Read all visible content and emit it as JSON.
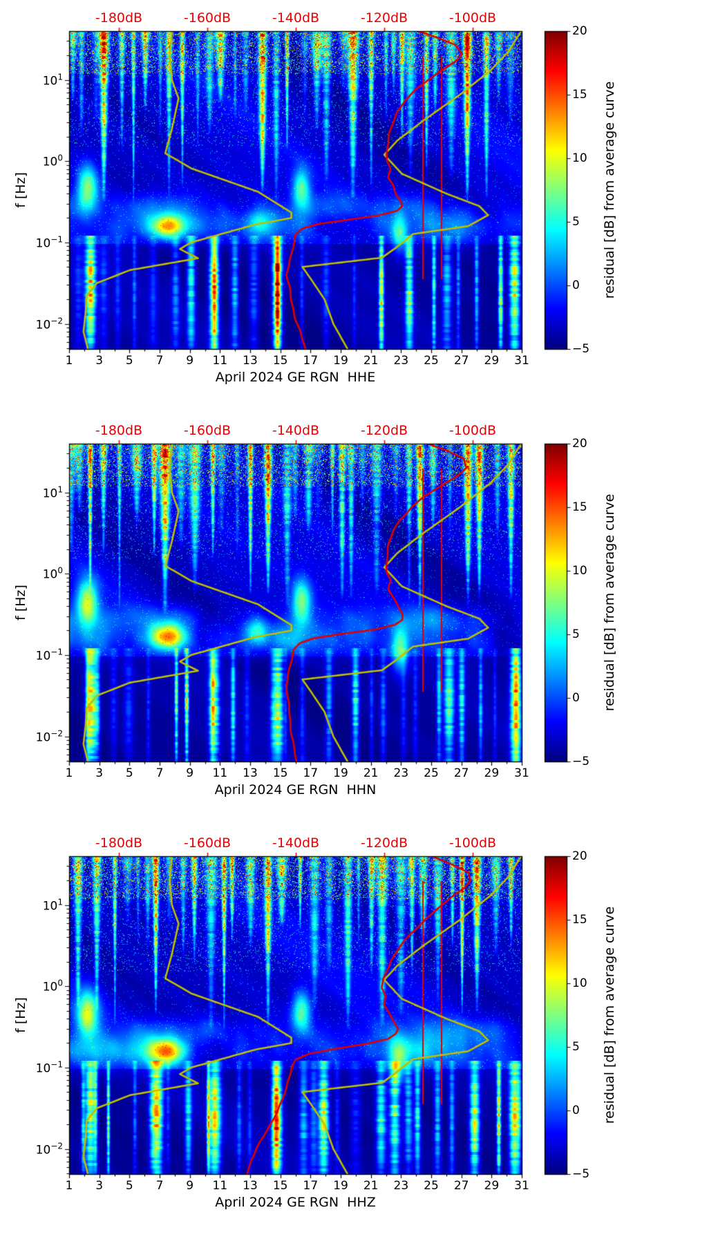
{
  "chart_data": {
    "type": "heatmap",
    "description": "Three stacked day-vs-frequency spectrograms (residual PSD in dB from average curve, jet colormap) for station GE RGN, April 2024, components HHE, HHN, HHZ. Vertical daily noise stripes, speckled high-frequency band above ~12 Hz, bright microseism band near 0.1-0.3 Hz with strong blob around day 7-8, sparse long-period streaks below 0.1 Hz. Overlaid: red average PSD curve and dark-yellow Peterson NLNM/NHNM reference curves plotted against the top dB axis.",
    "station": "GE RGN",
    "month": "April 2024",
    "axes": {
      "x_ticks": [
        1,
        3,
        5,
        7,
        9,
        11,
        13,
        15,
        17,
        19,
        21,
        23,
        25,
        27,
        29,
        31
      ],
      "x_range": [
        1,
        31
      ],
      "y_label": "f [Hz]",
      "y_tick_exponents": [
        1,
        0,
        -1,
        -2
      ],
      "log_f_range": [
        -2.31,
        1.6
      ],
      "top_axis": {
        "unit": "dB",
        "ticks": [
          -180,
          -160,
          -140,
          -120,
          -100
        ],
        "labels": [
          "-180dB",
          "-160dB",
          "-140dB",
          "-120dB",
          "-100dB"
        ],
        "db_range": [
          -191.25,
          -88.9
        ]
      }
    },
    "colorbar": {
      "label": "residual [dB] from average curve",
      "ticks": [
        20,
        15,
        10,
        5,
        0,
        -5
      ],
      "tick_labels": [
        "20",
        "15",
        "10",
        "5",
        "0",
        "−5"
      ],
      "clim": [
        -5,
        20
      ],
      "colormap": "jet"
    },
    "colors": {
      "annotation_red": "#ea0000",
      "curve_red": "#dd0000",
      "curve_yellow": "#bfbf00",
      "background": "#ffffff"
    },
    "overlays": {
      "nlnm": [
        [
          -168,
          40
        ],
        [
          -168.5,
          20
        ],
        [
          -168,
          10
        ],
        [
          -166.5,
          5.9
        ],
        [
          -168,
          2.5
        ],
        [
          -169.5,
          1.25
        ],
        [
          -163.5,
          0.81
        ],
        [
          -148.5,
          0.42
        ],
        [
          -141,
          0.233
        ],
        [
          -141,
          0.2
        ],
        [
          -149,
          0.167
        ],
        [
          -163.7,
          0.1
        ],
        [
          -166.2,
          0.083
        ],
        [
          -162.1,
          0.064
        ],
        [
          -177.5,
          0.0457
        ],
        [
          -185,
          0.0316
        ],
        [
          -187.3,
          0.022
        ],
        [
          -187.5,
          0.014
        ],
        [
          -188,
          0.008
        ],
        [
          -187,
          0.0049
        ]
      ],
      "nhnm": [
        [
          -89,
          40
        ],
        [
          -92,
          22
        ],
        [
          -96,
          13
        ],
        [
          -103,
          6.5
        ],
        [
          -111,
          3.2
        ],
        [
          -117,
          1.8
        ],
        [
          -120,
          1.2
        ],
        [
          -116,
          0.7
        ],
        [
          -106,
          0.4
        ],
        [
          -98.5,
          0.28
        ],
        [
          -96.5,
          0.217
        ],
        [
          -101,
          0.159
        ],
        [
          -113.5,
          0.127
        ],
        [
          -117.5,
          0.085
        ],
        [
          -120.5,
          0.065
        ],
        [
          -138.5,
          0.05
        ],
        [
          -136.5,
          0.035
        ],
        [
          -133.5,
          0.02
        ],
        [
          -131.5,
          0.01
        ],
        [
          -128.3,
          0.0049
        ]
      ]
    },
    "panels": [
      {
        "component": "HHE",
        "xlabel": "April 2024 GE RGN  HHE",
        "seed": 17,
        "marker_line_days": [
          24.45,
          25.72
        ],
        "low_events": [
          [
            2.4,
            15
          ],
          [
            10.6,
            12
          ],
          [
            14.8,
            13
          ],
          [
            30.55,
            14
          ]
        ],
        "blobs": [
          [
            7.6,
            -0.8,
            13,
            0.75,
            0.1
          ],
          [
            2.2,
            -0.33,
            11,
            0.5,
            0.2
          ],
          [
            16.4,
            -0.33,
            9,
            0.4,
            0.17
          ],
          [
            13.6,
            -0.75,
            6,
            0.6,
            0.12
          ],
          [
            22.9,
            -0.9,
            7,
            0.35,
            0.18
          ]
        ],
        "red_curve": [
          [
            -112,
            40
          ],
          [
            -108,
            33
          ],
          [
            -104,
            27
          ],
          [
            -102.5,
            21
          ],
          [
            -104,
            17
          ],
          [
            -107,
            13
          ],
          [
            -110,
            10
          ],
          [
            -113,
            7.5
          ],
          [
            -115.5,
            5.5
          ],
          [
            -117,
            4
          ],
          [
            -118,
            2.8
          ],
          [
            -119,
            2
          ],
          [
            -119.5,
            1.4
          ],
          [
            -119.5,
            1.0
          ],
          [
            -118.5,
            0.8
          ],
          [
            -119,
            0.62
          ],
          [
            -118,
            0.5
          ],
          [
            -117.5,
            0.4
          ],
          [
            -116.5,
            0.33
          ],
          [
            -116,
            0.28
          ],
          [
            -117,
            0.245
          ],
          [
            -121,
            0.215
          ],
          [
            -128,
            0.19
          ],
          [
            -135,
            0.168
          ],
          [
            -138.5,
            0.148
          ],
          [
            -140,
            0.125
          ],
          [
            -140.5,
            0.1
          ],
          [
            -141,
            0.075
          ],
          [
            -141.5,
            0.055
          ],
          [
            -142,
            0.04
          ],
          [
            -141.5,
            0.028
          ],
          [
            -141,
            0.019
          ],
          [
            -140,
            0.012
          ],
          [
            -139,
            0.008
          ],
          [
            -138,
            0.0049
          ]
        ]
      },
      {
        "component": "HHN",
        "xlabel": "April 2024 GE RGN  HHN",
        "seed": 29,
        "marker_line_days": [
          24.45,
          25.72
        ],
        "low_events": [
          [
            2.45,
            14
          ],
          [
            10.6,
            12
          ],
          [
            14.85,
            13
          ],
          [
            26.2,
            10
          ],
          [
            30.6,
            14
          ]
        ],
        "blobs": [
          [
            7.5,
            -0.78,
            15,
            0.9,
            0.11
          ],
          [
            2.2,
            -0.35,
            12,
            0.5,
            0.2
          ],
          [
            16.4,
            -0.33,
            10,
            0.45,
            0.18
          ],
          [
            22.9,
            -0.95,
            8,
            0.4,
            0.2
          ],
          [
            13.4,
            -0.7,
            6,
            0.5,
            0.12
          ]
        ],
        "red_curve": [
          [
            -110,
            40
          ],
          [
            -106,
            33
          ],
          [
            -102,
            26
          ],
          [
            -101.5,
            20
          ],
          [
            -103.5,
            16
          ],
          [
            -107,
            12
          ],
          [
            -111,
            9
          ],
          [
            -114,
            6.5
          ],
          [
            -116.5,
            4.6
          ],
          [
            -118,
            3.2
          ],
          [
            -119,
            2.2
          ],
          [
            -119.5,
            1.5
          ],
          [
            -119.5,
            1.05
          ],
          [
            -118.5,
            0.82
          ],
          [
            -119,
            0.64
          ],
          [
            -118,
            0.5
          ],
          [
            -117,
            0.4
          ],
          [
            -116,
            0.32
          ],
          [
            -116,
            0.27
          ],
          [
            -117.5,
            0.235
          ],
          [
            -122,
            0.205
          ],
          [
            -130,
            0.18
          ],
          [
            -136,
            0.16
          ],
          [
            -139,
            0.14
          ],
          [
            -140.5,
            0.115
          ],
          [
            -141,
            0.09
          ],
          [
            -141.5,
            0.065
          ],
          [
            -142,
            0.045
          ],
          [
            -142,
            0.03
          ],
          [
            -141.5,
            0.02
          ],
          [
            -141,
            0.013
          ],
          [
            -140.5,
            0.008
          ],
          [
            -140,
            0.0049
          ]
        ]
      },
      {
        "component": "HHZ",
        "xlabel": "April 2024 GE RGN  HHZ",
        "seed": 43,
        "marker_line_days": [
          24.45,
          25.72
        ],
        "low_events": [
          [
            2.4,
            13
          ],
          [
            6.9,
            11
          ],
          [
            10.6,
            12
          ],
          [
            14.8,
            12
          ],
          [
            22.6,
            11
          ],
          [
            30.55,
            14
          ]
        ],
        "blobs": [
          [
            7.5,
            -0.8,
            14,
            0.85,
            0.11
          ],
          [
            2.2,
            -0.34,
            12,
            0.5,
            0.2
          ],
          [
            16.4,
            -0.32,
            10,
            0.45,
            0.18
          ],
          [
            22.8,
            -0.92,
            8,
            0.4,
            0.2
          ]
        ],
        "red_curve": [
          [
            -109,
            40
          ],
          [
            -105,
            32
          ],
          [
            -101,
            25
          ],
          [
            -100.5,
            20
          ],
          [
            -102,
            16
          ],
          [
            -105,
            12
          ],
          [
            -108,
            9
          ],
          [
            -111,
            6.5
          ],
          [
            -114,
            4.5
          ],
          [
            -116.5,
            3
          ],
          [
            -118.5,
            2
          ],
          [
            -120,
            1.35
          ],
          [
            -120.5,
            0.95
          ],
          [
            -119.5,
            0.75
          ],
          [
            -120,
            0.58
          ],
          [
            -119,
            0.46
          ],
          [
            -118,
            0.37
          ],
          [
            -117,
            0.3
          ],
          [
            -117.5,
            0.26
          ],
          [
            -119,
            0.225
          ],
          [
            -124,
            0.195
          ],
          [
            -131,
            0.17
          ],
          [
            -137,
            0.148
          ],
          [
            -140,
            0.125
          ],
          [
            -141,
            0.1
          ],
          [
            -141.5,
            0.075
          ],
          [
            -142,
            0.055
          ],
          [
            -143,
            0.04
          ],
          [
            -144.5,
            0.028
          ],
          [
            -146,
            0.019
          ],
          [
            -148,
            0.012
          ],
          [
            -150,
            0.0075
          ],
          [
            -151,
            0.0049
          ]
        ]
      }
    ]
  }
}
